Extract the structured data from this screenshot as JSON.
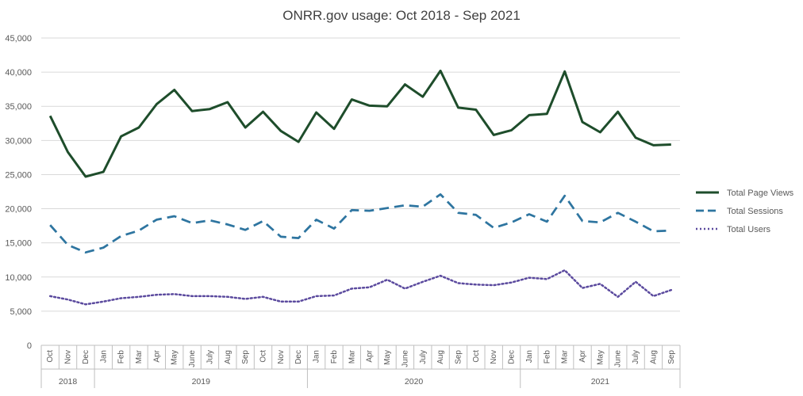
{
  "chart_data": {
    "type": "line",
    "title": "ONRR.gov usage: Oct 2018 - Sep 2021",
    "xlabel": "",
    "ylabel": "",
    "ylim": [
      0,
      45000
    ],
    "yticks": [
      0,
      5000,
      10000,
      15000,
      20000,
      25000,
      30000,
      35000,
      40000,
      45000
    ],
    "ytick_labels": [
      "0",
      "5,000",
      "10,000",
      "15,000",
      "20,000",
      "25,000",
      "30,000",
      "35,000",
      "40,000",
      "45,000"
    ],
    "grid": "horizontal",
    "legend_position": "right",
    "categories": [
      "Oct",
      "Nov",
      "Dec",
      "Jan",
      "Feb",
      "Mar",
      "Apr",
      "May",
      "June",
      "July",
      "Aug",
      "Sep",
      "Oct",
      "Nov",
      "Dec",
      "Jan",
      "Feb",
      "Mar",
      "Apr",
      "May",
      "June",
      "July",
      "Aug",
      "Sep",
      "Oct",
      "Nov",
      "Dec",
      "Jan",
      "Feb",
      "Mar",
      "Apr",
      "May",
      "June",
      "July",
      "Aug",
      "Sep"
    ],
    "year_groups": [
      {
        "label": "2018",
        "count": 3
      },
      {
        "label": "2019",
        "count": 12
      },
      {
        "label": "2020",
        "count": 12
      },
      {
        "label": "2021",
        "count": 9
      }
    ],
    "series": [
      {
        "name": "Total Page Views",
        "color": "#1e4d2b",
        "style": "solid",
        "values": [
          33600,
          28300,
          24700,
          25400,
          30600,
          31900,
          35300,
          37400,
          34300,
          34600,
          35600,
          31900,
          34200,
          31400,
          29800,
          34100,
          31700,
          36000,
          35100,
          35000,
          38200,
          36400,
          40200,
          34800,
          34500,
          30800,
          31500,
          33700,
          33900,
          40100,
          32700,
          31200,
          34200,
          30400,
          29300,
          29400
        ]
      },
      {
        "name": "Total Sessions",
        "color": "#2e75a0",
        "style": "dashed",
        "values": [
          17600,
          14700,
          13600,
          14300,
          16000,
          16800,
          18400,
          18900,
          17900,
          18300,
          17700,
          16900,
          18200,
          15900,
          15700,
          18400,
          17100,
          19800,
          19700,
          20100,
          20500,
          20300,
          22100,
          19400,
          19100,
          17200,
          18000,
          19200,
          18100,
          21900,
          18200,
          18000,
          19400,
          18100,
          16700,
          16800
        ]
      },
      {
        "name": "Total Users",
        "color": "#5b4a9e",
        "style": "dotted",
        "values": [
          7200,
          6700,
          6000,
          6400,
          6900,
          7100,
          7400,
          7500,
          7200,
          7200,
          7100,
          6800,
          7100,
          6400,
          6400,
          7200,
          7300,
          8300,
          8500,
          9600,
          8300,
          9300,
          10200,
          9100,
          8900,
          8800,
          9200,
          9900,
          9700,
          11000,
          8400,
          9000,
          7100,
          9300,
          7200,
          8100
        ]
      }
    ]
  }
}
